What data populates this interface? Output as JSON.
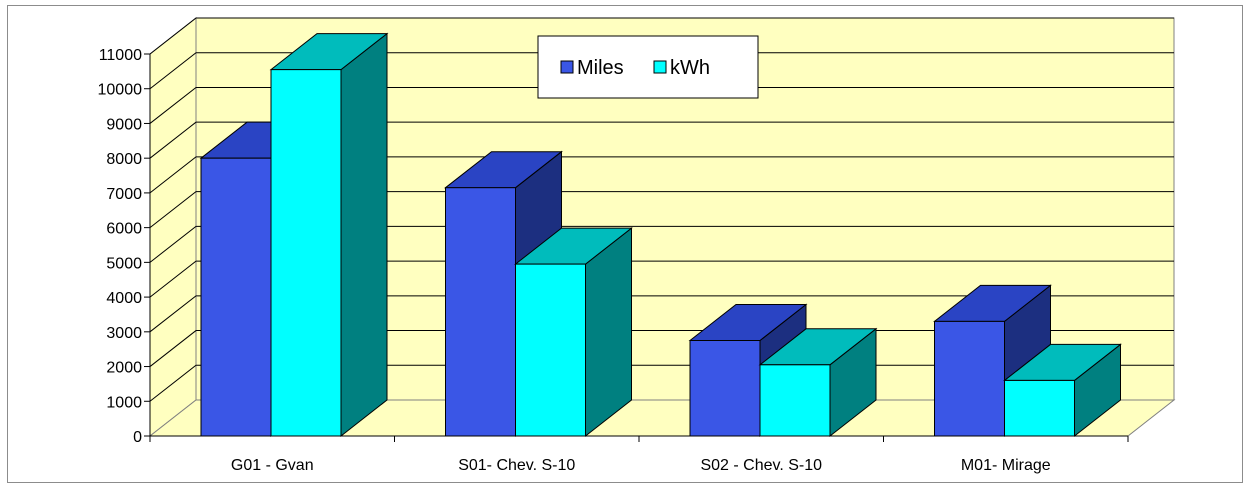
{
  "chart_data": {
    "type": "bar",
    "categories": [
      "G01 - Gvan",
      "S01- Chev. S-10",
      "S02 - Chev. S-10",
      "M01- Mirage"
    ],
    "series": [
      {
        "name": "Miles",
        "values": [
          8000,
          7150,
          2750,
          3300
        ]
      },
      {
        "name": "kWh",
        "values": [
          10550,
          4950,
          2050,
          1600
        ]
      }
    ],
    "ylim": [
      0,
      11000
    ],
    "yticks": [
      0,
      1000,
      2000,
      3000,
      4000,
      5000,
      6000,
      7000,
      8000,
      9000,
      10000,
      11000
    ],
    "legend_position": "top",
    "grid": true,
    "style": "3d-clustered",
    "colors": {
      "miles_front": "#3a56e6",
      "miles_top": "#2a44c4",
      "miles_side": "#1c2f80",
      "kwh_front": "#00ffff",
      "kwh_top": "#00bcbc",
      "kwh_side": "#008080",
      "wall": "#ffffc0",
      "floor": "#ffffc0"
    }
  }
}
